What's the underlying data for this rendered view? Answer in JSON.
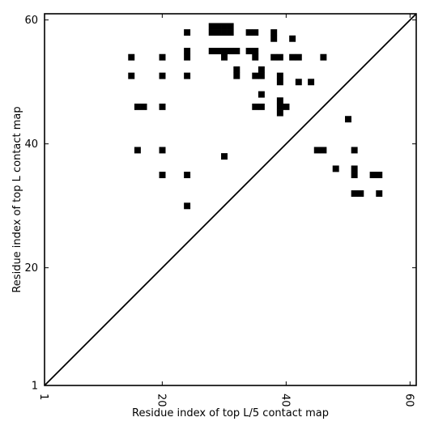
{
  "chart_data": {
    "type": "heatmap",
    "xlabel": "Residue index of top L/5 contact map",
    "ylabel": "Residue index of top L contact map",
    "xlim": [
      1,
      61
    ],
    "ylim": [
      1,
      61
    ],
    "x_ticks": [
      1,
      20,
      40,
      60
    ],
    "y_ticks": [
      1,
      20,
      40,
      60
    ],
    "diagonal": {
      "from": [
        1,
        1
      ],
      "to": [
        61,
        61
      ],
      "color": "#000000"
    },
    "cell_color": "#000000",
    "cells": [
      [
        24,
        58
      ],
      [
        28,
        59
      ],
      [
        29,
        59
      ],
      [
        30,
        59
      ],
      [
        31,
        59
      ],
      [
        28,
        58
      ],
      [
        29,
        58
      ],
      [
        30,
        58
      ],
      [
        31,
        58
      ],
      [
        34,
        58
      ],
      [
        35,
        58
      ],
      [
        38,
        58
      ],
      [
        38,
        57
      ],
      [
        41,
        57
      ],
      [
        28,
        55
      ],
      [
        29,
        55
      ],
      [
        30,
        55
      ],
      [
        31,
        55
      ],
      [
        32,
        55
      ],
      [
        34,
        55
      ],
      [
        35,
        55
      ],
      [
        24,
        55
      ],
      [
        24,
        54
      ],
      [
        15,
        54
      ],
      [
        20,
        54
      ],
      [
        30,
        54
      ],
      [
        35,
        54
      ],
      [
        38,
        54
      ],
      [
        39,
        54
      ],
      [
        41,
        54
      ],
      [
        42,
        54
      ],
      [
        46,
        54
      ],
      [
        32,
        52
      ],
      [
        36,
        52
      ],
      [
        32,
        51
      ],
      [
        35,
        51
      ],
      [
        36,
        51
      ],
      [
        39,
        51
      ],
      [
        39,
        50
      ],
      [
        42,
        50
      ],
      [
        44,
        50
      ],
      [
        15,
        51
      ],
      [
        20,
        51
      ],
      [
        24,
        51
      ],
      [
        36,
        48
      ],
      [
        39,
        47
      ],
      [
        16,
        46
      ],
      [
        17,
        46
      ],
      [
        20,
        46
      ],
      [
        35,
        46
      ],
      [
        36,
        46
      ],
      [
        39,
        46
      ],
      [
        40,
        46
      ],
      [
        39,
        45
      ],
      [
        50,
        44
      ],
      [
        16,
        39
      ],
      [
        20,
        39
      ],
      [
        45,
        39
      ],
      [
        46,
        39
      ],
      [
        51,
        39
      ],
      [
        30,
        38
      ],
      [
        48,
        36
      ],
      [
        51,
        36
      ],
      [
        51,
        35
      ],
      [
        20,
        35
      ],
      [
        24,
        35
      ],
      [
        54,
        35
      ],
      [
        55,
        35
      ],
      [
        51,
        32
      ],
      [
        52,
        32
      ],
      [
        55,
        32
      ],
      [
        24,
        30
      ]
    ]
  }
}
